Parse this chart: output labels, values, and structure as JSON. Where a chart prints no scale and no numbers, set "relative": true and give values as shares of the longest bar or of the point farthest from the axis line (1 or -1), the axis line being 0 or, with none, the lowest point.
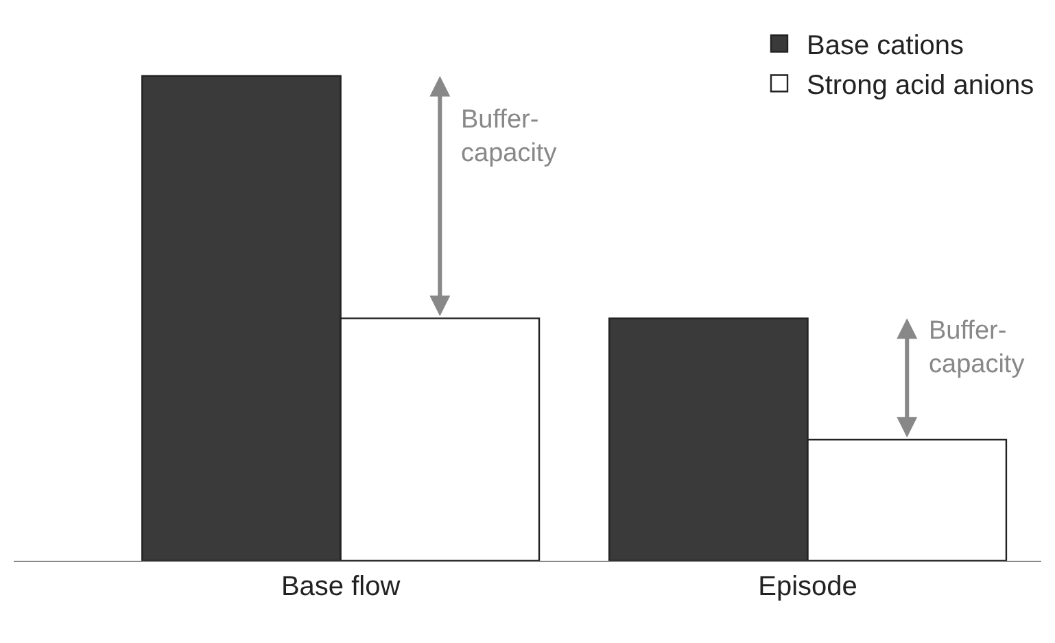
{
  "chart_data": {
    "type": "bar",
    "relative": true,
    "categories": [
      "Base flow",
      "Episode"
    ],
    "series": [
      {
        "name": "Base cations",
        "color": "#3a3a3a",
        "values": [
          1,
          0.5
        ]
      },
      {
        "name": "Strong acid anions",
        "color": "#ffffff",
        "values": [
          0.5,
          0.25
        ]
      }
    ],
    "annotations": [
      "Buffer-\ncapacity",
      "Buffer-\ncapacity"
    ],
    "legend": "top right"
  }
}
